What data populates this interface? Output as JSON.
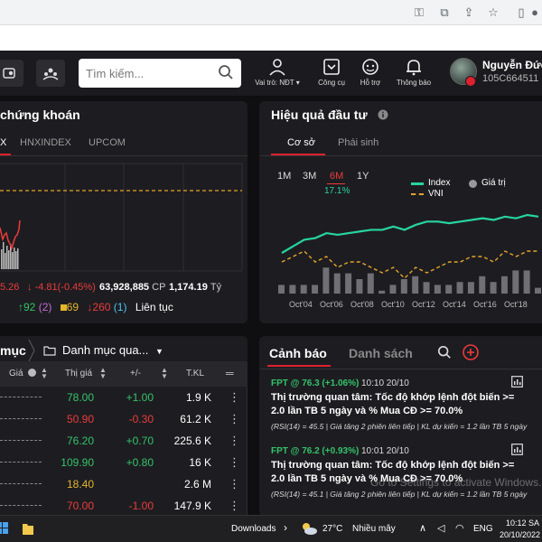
{
  "browser": {
    "icons": [
      "key-icon",
      "translate-icon",
      "share-icon",
      "star-icon",
      "split-icon",
      "avatar-icon"
    ]
  },
  "header": {
    "search_placeholder": "Tìm kiếm...",
    "nav": [
      {
        "icon": "person-icon",
        "label": "Vai trò: NĐT ▾"
      },
      {
        "icon": "handshake-icon",
        "label": "Công cụ"
      },
      {
        "icon": "support-icon",
        "label": "Hỗ trợ"
      },
      {
        "icon": "bell-icon",
        "label": "Thông báo"
      }
    ],
    "user_name": "Nguyễn Đức",
    "user_id": "105C664511"
  },
  "market": {
    "title": "chứng khoán",
    "tabs": [
      "X",
      "HNXINDEX",
      "UPCOM"
    ],
    "active_tab": 0,
    "index_value": "5.26",
    "change": "-4.81(-0.45%)",
    "volume": "63,928,885",
    "volume_unit": "CP",
    "value": "1,174.19",
    "value_unit": "Tỷ",
    "up": "92",
    "ref": "(2)",
    "unchanged": "69",
    "down": "260",
    "down_ceil": "(1)",
    "session": "Liên tục"
  },
  "performance": {
    "title": "Hiệu quả đầu tư",
    "tabs": [
      "Cơ sở",
      "Phái sinh"
    ],
    "periods": [
      "1M",
      "3M",
      "6M",
      "1Y"
    ],
    "active_period": 2,
    "return": "17.1%",
    "legend": {
      "index": "Index",
      "vni": "VNI",
      "value": "Giá trị"
    },
    "colors": {
      "index": "#27d5a0",
      "vni": "#e5a42b",
      "bar": "#6f6f74"
    }
  },
  "chart_data": {
    "type": "line",
    "x_ticks": [
      "Oct'04",
      "Oct'06",
      "Oct'08",
      "Oct'10",
      "Oct'12",
      "Oct'14",
      "Oct'16",
      "Oct'18"
    ],
    "series": [
      {
        "name": "Index",
        "values": [
          0,
          4,
          8,
          9,
          12,
          11,
          12,
          13,
          14,
          14,
          16,
          14,
          17,
          19,
          19,
          18,
          19,
          20,
          21,
          20,
          22,
          21,
          23,
          22
        ]
      },
      {
        "name": "VNI",
        "values": [
          1,
          2,
          3,
          1,
          2,
          0,
          1,
          1,
          0,
          -1,
          0,
          -2,
          0,
          -1,
          0,
          1,
          1,
          2,
          2,
          1,
          3,
          2,
          3,
          3
        ]
      },
      {
        "name": "Giá trị",
        "values": [
          3,
          3,
          3,
          3,
          9,
          7,
          7,
          5,
          7,
          1,
          3,
          5,
          6,
          4,
          3,
          3,
          4,
          4,
          6,
          4,
          6,
          8,
          8,
          2
        ]
      }
    ]
  },
  "watchlist": {
    "title": "mục",
    "portfolio": "Danh mục qua...",
    "headers": {
      "price_col": "Giá",
      "last": "Thị giá",
      "chg": "+/-",
      "vol": "T.KL"
    },
    "rows": [
      {
        "last": "78.00",
        "chg": "+1.00",
        "vol": "1.9 K",
        "color": "#34c36a"
      },
      {
        "last": "50.90",
        "chg": "-0.30",
        "vol": "61.2 K",
        "color": "#ec3b3b"
      },
      {
        "last": "76.20",
        "chg": "+0.70",
        "vol": "225.6 K",
        "color": "#34c36a"
      },
      {
        "last": "109.90",
        "chg": "+0.80",
        "vol": "16 K",
        "color": "#34c36a"
      },
      {
        "last": "18.40",
        "chg": "",
        "vol": "2.6 M",
        "color": "#e5b52b"
      },
      {
        "last": "70.00",
        "chg": "-1.00",
        "vol": "147.9 K",
        "color": "#ec3b3b"
      }
    ]
  },
  "alerts": {
    "tabs": [
      "Cảnh báo",
      "Danh sách"
    ],
    "items": [
      {
        "symbol": "FPT @ 76.3 (+1.06%)",
        "time": "10:10 20/10",
        "text": "Thị trường quan tâm: Tốc độ khớp lệnh đột biến >= 2.0 lần TB 5 ngày và % Mua CĐ >= 70.0%",
        "sub": "(RSI(14) = 45.5 | Giá tăng 2 phiên liên tiếp | KL dự kiến = 1.2 lần TB 5 ngày"
      },
      {
        "symbol": "FPT @ 76.2 (+0.93%)",
        "time": "10:01 20/10",
        "text": "Thị trường quan tâm: Tốc độ khớp lệnh đột biến >= 2.0 lần TB 5 ngày và % Mua CĐ >= 70.0%",
        "sub": "(RSI(14) = 45.1 | Giá tăng 2 phiên liên tiếp | KL dự kiến = 1.2 lần TB 5 ngày"
      }
    ],
    "watermark": "Go to Settings to activate Windows."
  },
  "taskbar": {
    "downloads": "Downloads",
    "temperature": "27°C",
    "weather": "Nhiều mây",
    "lang": "ENG",
    "time": "10:12 SA",
    "date": "20/10/2022"
  }
}
